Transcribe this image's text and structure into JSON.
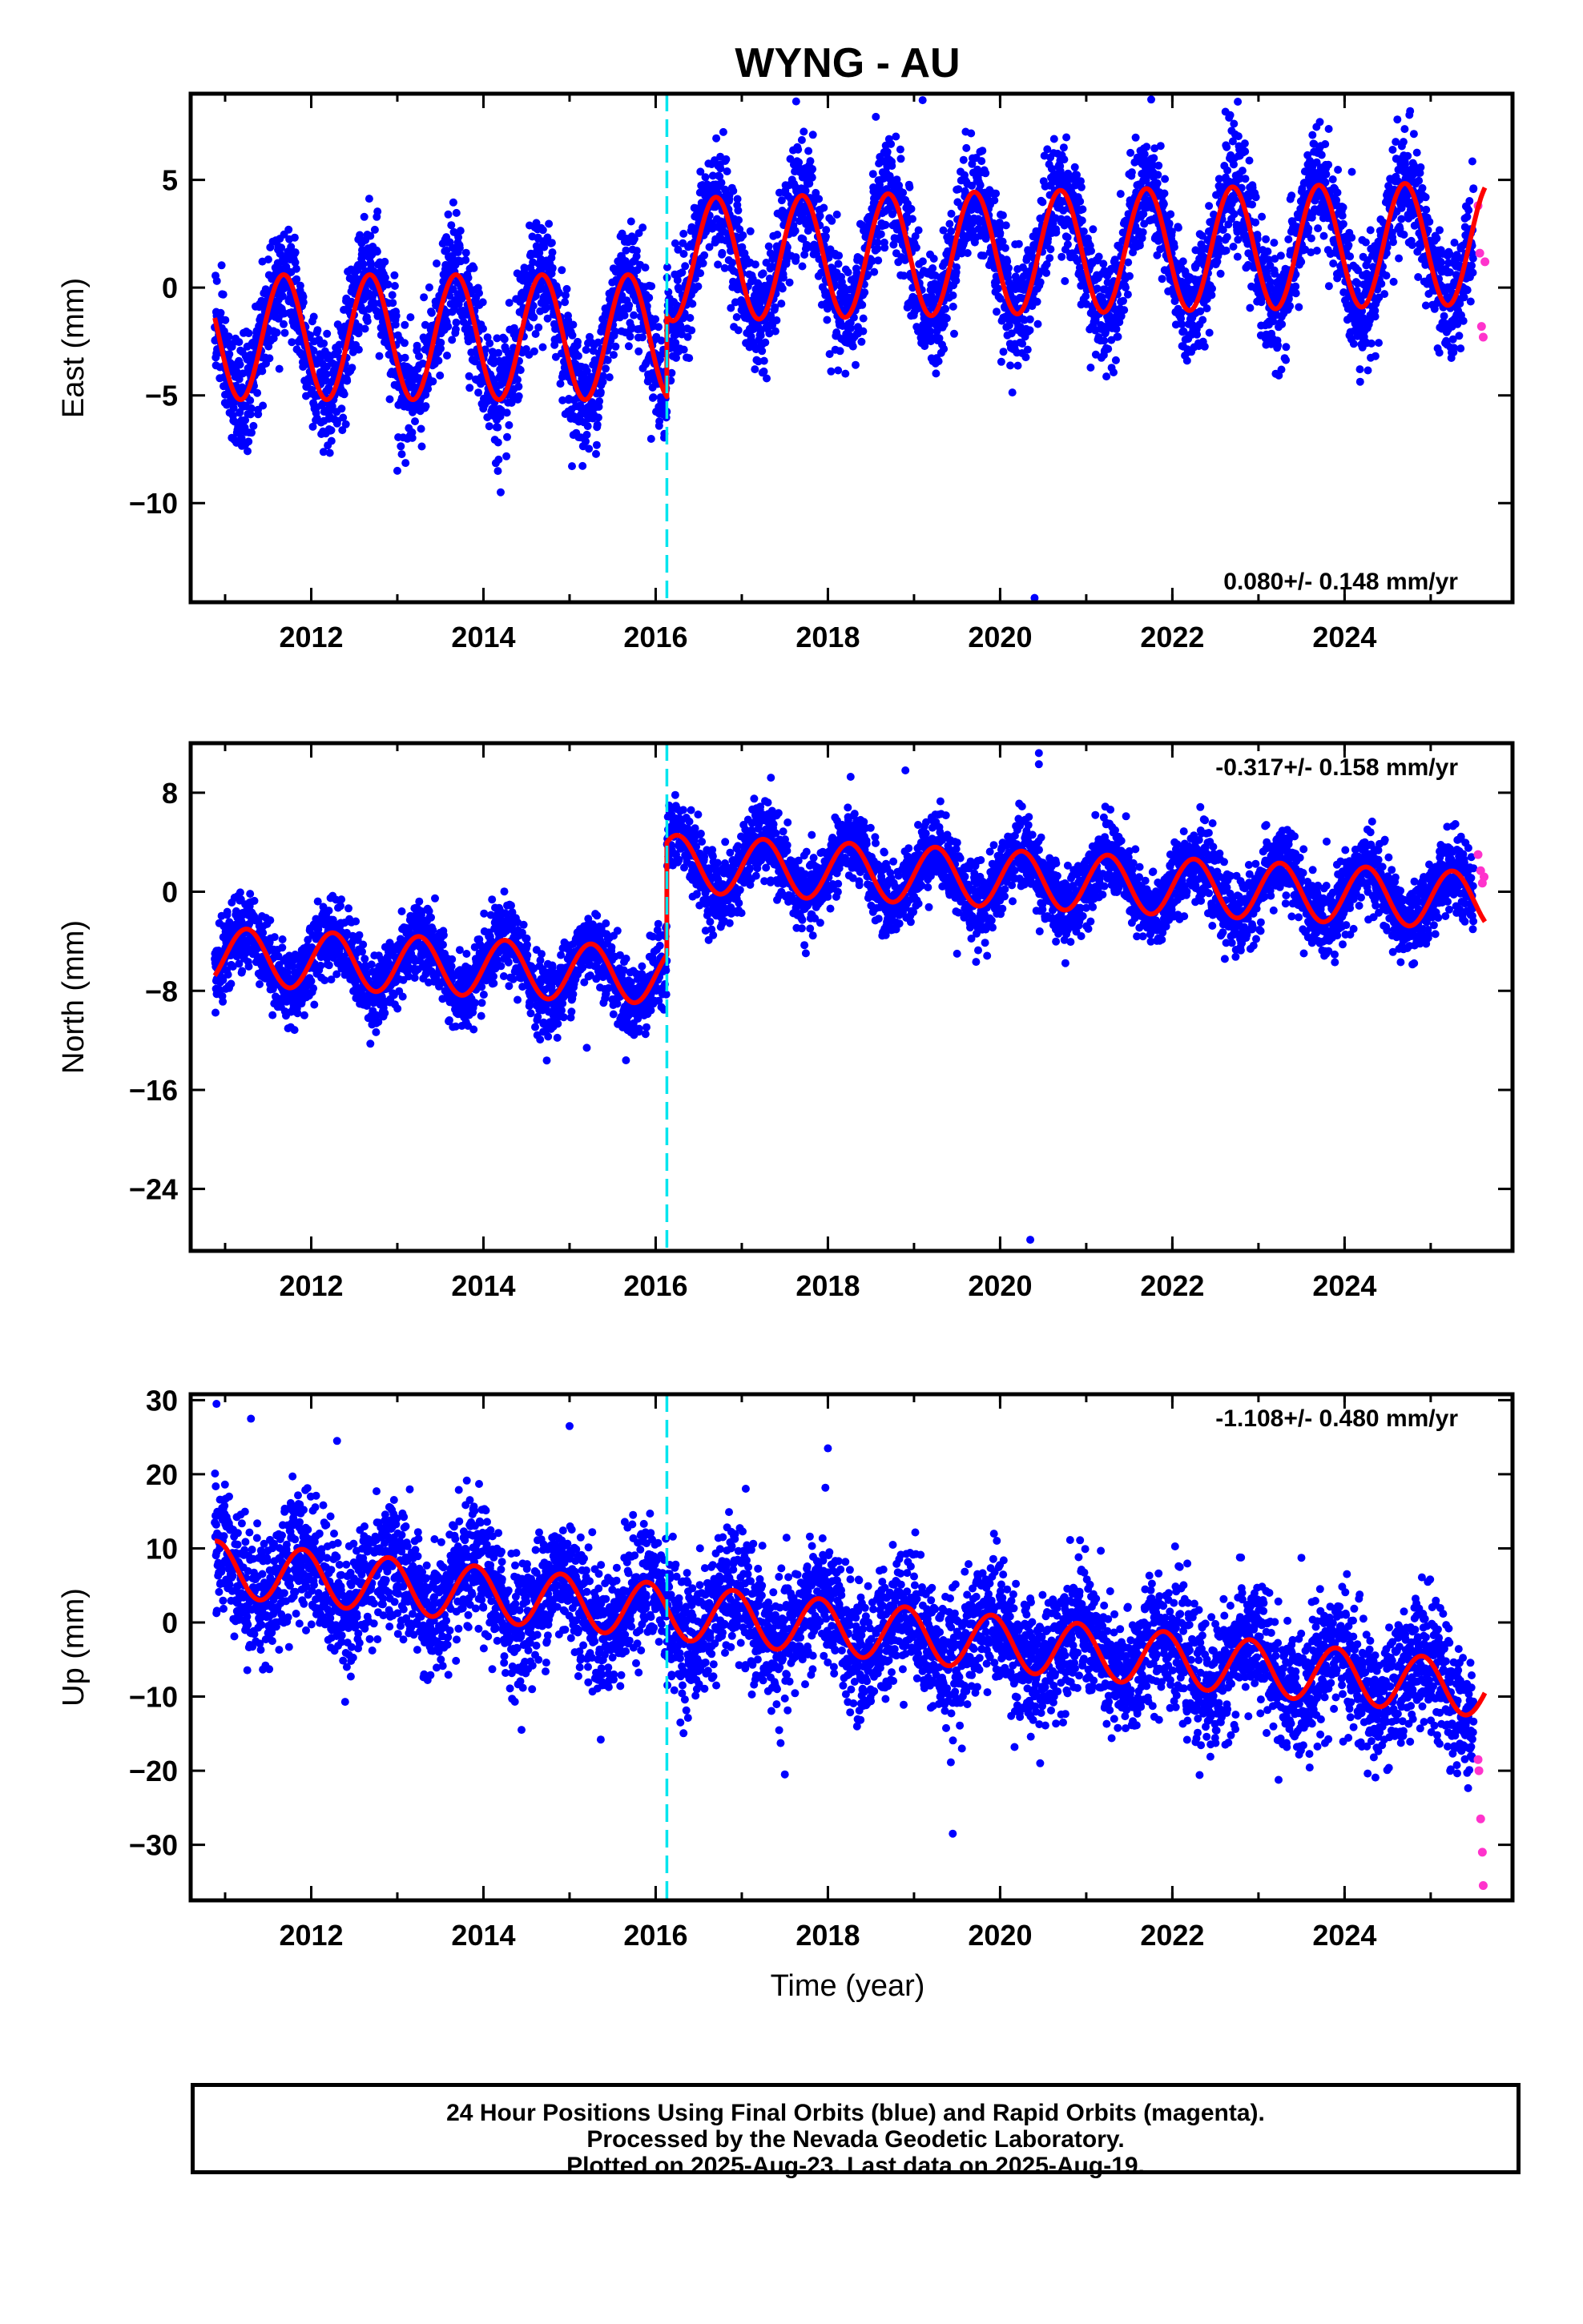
{
  "title": "WYNG - AU",
  "colors": {
    "final_orbits": "#0000ff",
    "rapid_orbits": "#ff33cc",
    "model_fit": "#ff0000",
    "equipment_change_line": "#00e5ee"
  },
  "xlabel": "Time (year)",
  "x_tick_labels": [
    "2012",
    "2014",
    "2016",
    "2018",
    "2020",
    "2022",
    "2024"
  ],
  "footer": {
    "line1": "24 Hour Positions Using Final Orbits (blue) and Rapid Orbits (magenta).",
    "line2": "Processed by the Nevada Geodetic Laboratory.",
    "line3": "Plotted on 2025-Aug-23. Last data on 2025-Aug-19."
  },
  "chart_data": [
    {
      "type": "scatter",
      "component": "east",
      "ylabel": "East (mm)",
      "rate_label": "0.080+/- 0.148 mm/yr",
      "rate_position": "bottom-right",
      "xlim": [
        2010.6,
        2025.95
      ],
      "ylim": [
        -14.6,
        9.0
      ],
      "yticks": [
        5,
        0,
        -5,
        -10
      ],
      "ytick_labels": [
        "5",
        "0",
        "−5",
        "−10"
      ],
      "xticks": [
        2012,
        2014,
        2016,
        2018,
        2020,
        2022,
        2024
      ],
      "equipment_change": 2016.13,
      "data_start": 2010.88,
      "data_end": 2025.63,
      "rapid_start": 2025.5,
      "series": [
        {
          "name": "Final Orbits (blue)",
          "noise_std": 1.3,
          "outliers": [
            [
              2019.1,
              8.7
            ],
            [
              2020.4,
              -14.4
            ],
            [
              2014.2,
              -9.5
            ],
            [
              2013.0,
              -8.5
            ]
          ]
        },
        {
          "name": "Rapid Orbits (magenta)",
          "values": [
            [
              2025.55,
              3.8
            ],
            [
              2025.57,
              1.6
            ],
            [
              2025.59,
              -1.8
            ],
            [
              2025.61,
              -2.3
            ],
            [
              2025.63,
              1.2
            ]
          ]
        },
        {
          "name": "model",
          "segments": [
            {
              "from": 2010.88,
              "to": 2016.13,
              "offset": -2.3,
              "rate": 0.0,
              "amp": 2.9,
              "phase": 2010.68
            },
            {
              "from": 2016.13,
              "to": 2025.63,
              "offset": 1.3,
              "rate": 0.08,
              "amp": 2.85,
              "phase": 2016.7
            }
          ]
        }
      ]
    },
    {
      "type": "scatter",
      "component": "north",
      "ylabel": "North (mm)",
      "rate_label": "-0.317+/- 0.158 mm/yr",
      "rate_position": "top-right",
      "xlim": [
        2010.6,
        2025.95
      ],
      "ylim": [
        -29.0,
        12.0
      ],
      "yticks": [
        8,
        0,
        -8,
        -16,
        -24
      ],
      "ytick_labels": [
        "8",
        "0",
        "−8",
        "−16",
        "−24"
      ],
      "xticks": [
        2012,
        2014,
        2016,
        2018,
        2020,
        2022,
        2024
      ],
      "equipment_change": 2016.13,
      "data_start": 2010.88,
      "data_end": 2025.63,
      "rapid_start": 2025.5,
      "series": [
        {
          "name": "Final Orbits (blue)",
          "noise_std": 1.5,
          "outliers": [
            [
              2020.45,
              11.2
            ],
            [
              2020.45,
              10.3
            ],
            [
              2020.35,
              -28.1
            ],
            [
              2018.9,
              9.8
            ],
            [
              2019.5,
              -5.0
            ],
            [
              2015.2,
              -12.6
            ]
          ]
        },
        {
          "name": "Rapid Orbits (magenta)",
          "values": [
            [
              2025.55,
              3.0
            ],
            [
              2025.58,
              1.7
            ],
            [
              2025.6,
              0.7
            ],
            [
              2025.62,
              1.2
            ]
          ]
        },
        {
          "name": "model",
          "segments": [
            {
              "from": 2010.88,
              "to": 2016.13,
              "offset": -5.2,
              "rate": -0.3,
              "amp": 2.3,
              "phase": 2011.25
            },
            {
              "from": 2016.13,
              "to": 2025.63,
              "offset": 2.3,
              "rate": -0.32,
              "amp": 2.3,
              "phase": 2016.25
            }
          ]
        }
      ]
    },
    {
      "type": "scatter",
      "component": "up",
      "ylabel": "Up (mm)",
      "rate_label": "-1.108+/- 0.480 mm/yr",
      "rate_position": "top-right",
      "xlim": [
        2010.6,
        2025.95
      ],
      "ylim": [
        -37.5,
        30.8
      ],
      "yticks": [
        30,
        20,
        10,
        0,
        -10,
        -20,
        -30
      ],
      "ytick_labels": [
        "30",
        "20",
        "10",
        "0",
        "−10",
        "−20",
        "−30"
      ],
      "xticks": [
        2012,
        2014,
        2016,
        2018,
        2020,
        2022,
        2024
      ],
      "xlabel": "Time (year)",
      "equipment_change": 2016.13,
      "data_start": 2010.88,
      "data_end": 2025.63,
      "rapid_start": 2025.5,
      "series": [
        {
          "name": "Final Orbits (blue)",
          "noise_std": 4.3,
          "outliers": [
            [
              2010.9,
              29.5
            ],
            [
              2011.3,
              27.5
            ],
            [
              2015.0,
              26.5
            ],
            [
              2019.45,
              -28.5
            ],
            [
              2017.5,
              -20.5
            ],
            [
              2018.0,
              23.5
            ],
            [
              2012.3,
              24.5
            ]
          ]
        },
        {
          "name": "Rapid Orbits (magenta)",
          "values": [
            [
              2025.55,
              -18.5
            ],
            [
              2025.56,
              -20.0
            ],
            [
              2025.58,
              -26.5
            ],
            [
              2025.6,
              -31.0
            ],
            [
              2025.61,
              -35.5
            ]
          ]
        },
        {
          "name": "model",
          "segments": [
            {
              "from": 2010.88,
              "to": 2025.63,
              "offset": 7.3,
              "rate": -1.108,
              "amp": 3.7,
              "phase": 2010.9
            }
          ]
        }
      ]
    }
  ]
}
